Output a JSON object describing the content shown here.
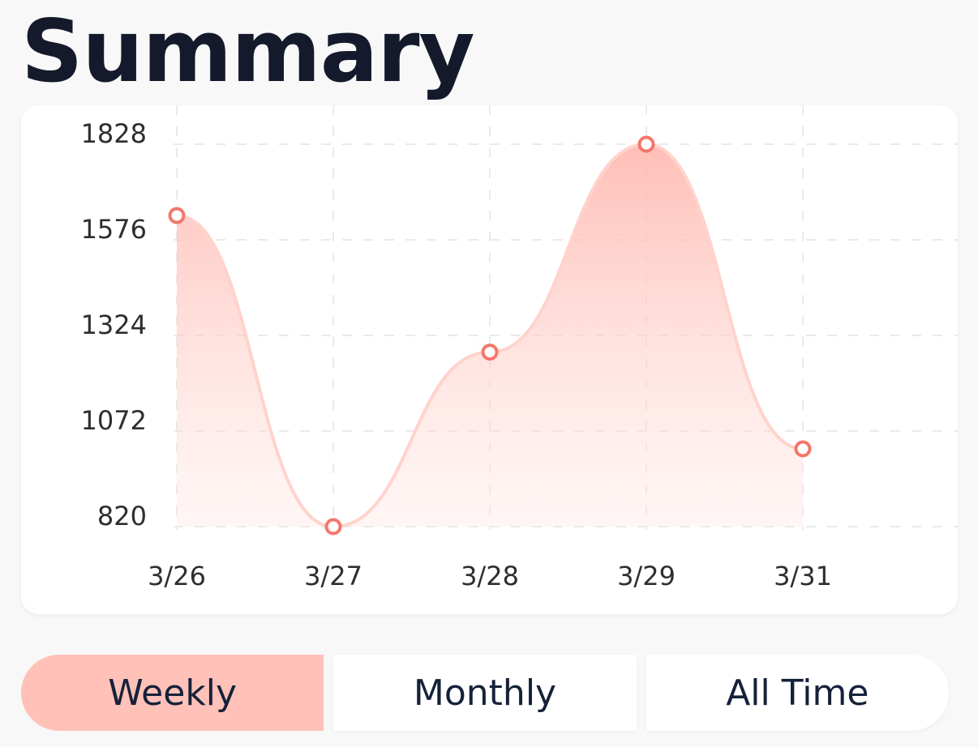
{
  "header": {
    "title": "Summary"
  },
  "chart_data": {
    "type": "line",
    "style": "smooth area",
    "categories": [
      "3/26",
      "3/27",
      "3/28",
      "3/29",
      "3/31"
    ],
    "series": [
      {
        "values": [
          1640,
          820,
          1280,
          1828,
          1025
        ]
      }
    ],
    "yticks": [
      820,
      1072,
      1324,
      1576,
      1828
    ],
    "ylim": [
      820,
      1828
    ],
    "grid": "dashed",
    "line_color": "#ffd3cc",
    "marker_color": "#f4776a",
    "fill_color": "#ffc1b8"
  },
  "period_selector": {
    "options": [
      {
        "label": "Weekly",
        "active": true
      },
      {
        "label": "Monthly",
        "active": false
      },
      {
        "label": "All Time",
        "active": false
      }
    ],
    "active_color": "#ffc1b8"
  }
}
